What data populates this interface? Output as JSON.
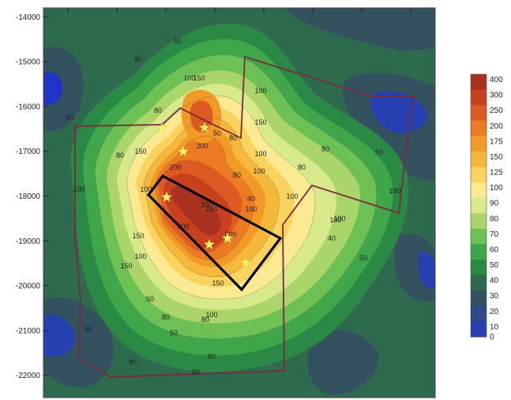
{
  "chart_data": {
    "type": "heatmap",
    "title": "",
    "xlabel": "",
    "ylabel": "",
    "y_ticks": [
      -14000,
      -15000,
      -16000,
      -17000,
      -18000,
      -19000,
      -20000,
      -21000,
      -22000
    ],
    "ylim": [
      -22500,
      -13800
    ],
    "x_tick_count": 8,
    "legend": {
      "placement": "right",
      "levels": [
        {
          "label": "400",
          "color": "#a8321f"
        },
        {
          "label": "300",
          "color": "#c8411f"
        },
        {
          "label": "250",
          "color": "#dd5a22"
        },
        {
          "label": "200",
          "color": "#ec7a22"
        },
        {
          "label": "175",
          "color": "#f29a26"
        },
        {
          "label": "150",
          "color": "#f6b83a"
        },
        {
          "label": "125",
          "color": "#f9d35e"
        },
        {
          "label": "100",
          "color": "#fbea92"
        },
        {
          "label": "90",
          "color": "#d7e98a"
        },
        {
          "label": "80",
          "color": "#a9d56a"
        },
        {
          "label": "70",
          "color": "#6cc054"
        },
        {
          "label": "60",
          "color": "#3fa64a"
        },
        {
          "label": "50",
          "color": "#2a8a45"
        },
        {
          "label": "40",
          "color": "#2e6a4d"
        },
        {
          "label": "30",
          "color": "#345160"
        },
        {
          "label": "20",
          "color": "#2f4a86"
        },
        {
          "label": "10",
          "color": "#2540b0"
        },
        {
          "label": "0",
          "color": "#2035c8"
        }
      ]
    },
    "contour_labels": [
      "50",
      "80",
      "100",
      "150",
      "100",
      "80",
      "80",
      "150",
      "200",
      "80",
      "100",
      "100",
      "150",
      "200",
      "250",
      "100",
      "100",
      "200",
      "150",
      "100",
      "150",
      "100",
      "80",
      "100",
      "150",
      "200",
      "80",
      "100",
      "50",
      "80",
      "50",
      "50",
      "80",
      "50",
      "80",
      "40",
      "40",
      "80",
      "50",
      "80",
      "50",
      "100",
      "80",
      "50",
      "100",
      "150",
      "100"
    ],
    "markers": {
      "type": "star",
      "color": "#fff36a",
      "count": 7
    },
    "outline_color": "#7a2a3a",
    "polygon_color": "#000000"
  }
}
